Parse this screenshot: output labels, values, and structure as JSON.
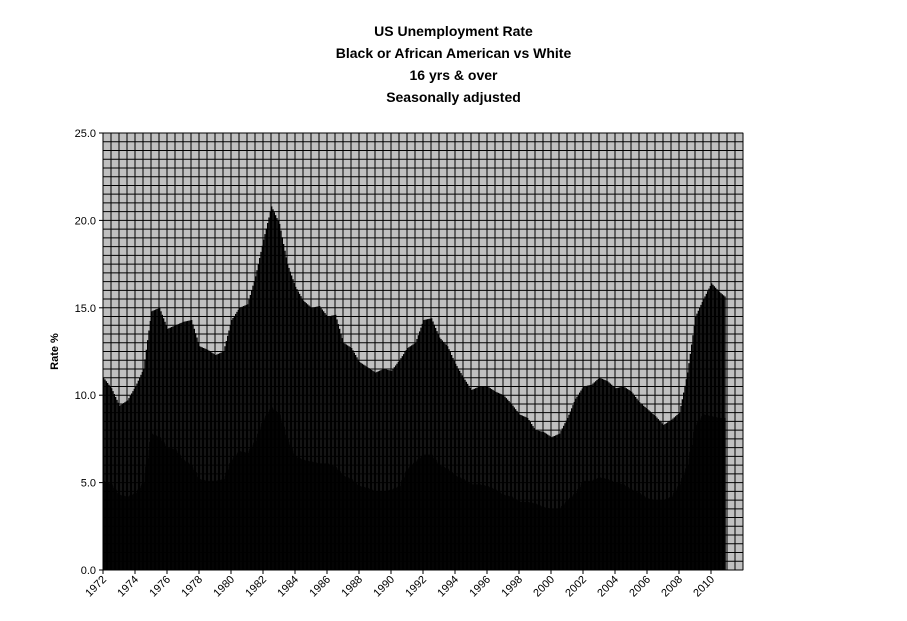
{
  "chart_data": {
    "type": "area",
    "title_lines": [
      "US Unemployment Rate",
      "Black or African American vs White",
      "16 yrs & over",
      "Seasonally adjusted"
    ],
    "xlabel": "",
    "ylabel": "Rate %",
    "ylim": [
      0,
      25
    ],
    "y_ticks": [
      "0.0",
      "5.0",
      "10.0",
      "15.0",
      "20.0",
      "25.0"
    ],
    "x_ticks": [
      "1972",
      "1974",
      "1976",
      "1978",
      "1980",
      "1982",
      "1984",
      "1986",
      "1988",
      "1990",
      "1992",
      "1994",
      "1996",
      "1998",
      "2000",
      "2002",
      "2004",
      "2006",
      "2008",
      "2010"
    ],
    "x_range": [
      1972,
      2012
    ],
    "grid": true,
    "plot_background": "#c0c0c0",
    "fill_color": "#000000",
    "series": [
      {
        "x": [
          1972.0,
          1972.5,
          1973.0,
          1973.5,
          1974.0,
          1974.5,
          1975.0,
          1975.5,
          1976.0,
          1976.5,
          1977.0,
          1977.5,
          1978.0,
          1978.5,
          1979.0,
          1979.5,
          1980.0,
          1980.5,
          1981.0,
          1981.5,
          1982.0,
          1982.5,
          1983.0,
          1983.5,
          1984.0,
          1984.5,
          1985.0,
          1985.5,
          1986.0,
          1986.5,
          1987.0,
          1987.5,
          1988.0,
          1988.5,
          1989.0,
          1989.5,
          1990.0,
          1990.5,
          1991.0,
          1991.5,
          1992.0,
          1992.5,
          1993.0,
          1993.5,
          1994.0,
          1994.5,
          1995.0,
          1995.5,
          1996.0,
          1996.5,
          1997.0,
          1997.5,
          1998.0,
          1998.5,
          1999.0,
          1999.5,
          2000.0,
          2000.5,
          2001.0,
          2001.5,
          2002.0,
          2002.5,
          2003.0,
          2003.5,
          2004.0,
          2004.5,
          2005.0,
          2005.5,
          2006.0,
          2006.5,
          2007.0,
          2007.5,
          2008.0,
          2008.5,
          2009.0,
          2009.5,
          2010.0,
          2010.5,
          2010.9
        ],
        "values": [
          11.0,
          10.4,
          9.4,
          9.7,
          10.5,
          11.5,
          14.8,
          15.0,
          13.8,
          14.0,
          14.2,
          14.3,
          12.8,
          12.6,
          12.3,
          12.5,
          14.3,
          15.0,
          15.2,
          16.8,
          18.9,
          20.8,
          19.8,
          17.5,
          16.2,
          15.4,
          15.0,
          15.1,
          14.5,
          14.6,
          13.0,
          12.7,
          11.9,
          11.6,
          11.3,
          11.5,
          11.4,
          12.0,
          12.7,
          13.0,
          14.3,
          14.4,
          13.3,
          12.8,
          11.8,
          11.0,
          10.3,
          10.5,
          10.5,
          10.2,
          10.0,
          9.5,
          8.9,
          8.7,
          8.0,
          7.9,
          7.6,
          7.8,
          8.7,
          9.8,
          10.5,
          10.6,
          11.0,
          10.8,
          10.4,
          10.5,
          10.2,
          9.6,
          9.2,
          8.8,
          8.3,
          8.6,
          9.0,
          11.3,
          14.5,
          15.5,
          16.4,
          15.9,
          15.6
        ]
      },
      {
        "x": [
          1972.0,
          1972.5,
          1973.0,
          1973.5,
          1974.0,
          1974.5,
          1975.0,
          1975.5,
          1976.0,
          1976.5,
          1977.0,
          1977.5,
          1978.0,
          1978.5,
          1979.0,
          1979.5,
          1980.0,
          1980.5,
          1981.0,
          1981.5,
          1982.0,
          1982.5,
          1983.0,
          1983.5,
          1984.0,
          1984.5,
          1985.0,
          1985.5,
          1986.0,
          1986.5,
          1987.0,
          1987.5,
          1988.0,
          1988.5,
          1989.0,
          1989.5,
          1990.0,
          1990.5,
          1991.0,
          1991.5,
          1992.0,
          1992.5,
          1993.0,
          1993.5,
          1994.0,
          1994.5,
          1995.0,
          1995.5,
          1996.0,
          1996.5,
          1997.0,
          1997.5,
          1998.0,
          1998.5,
          1999.0,
          1999.5,
          2000.0,
          2000.5,
          2001.0,
          2001.5,
          2002.0,
          2002.5,
          2003.0,
          2003.5,
          2004.0,
          2004.5,
          2005.0,
          2005.5,
          2006.0,
          2006.5,
          2007.0,
          2007.5,
          2008.0,
          2008.5,
          2009.0,
          2009.5,
          2010.0,
          2010.5,
          2010.9
        ],
        "values": [
          5.1,
          4.9,
          4.3,
          4.2,
          4.4,
          5.0,
          7.8,
          7.6,
          7.0,
          6.9,
          6.3,
          6.0,
          5.2,
          5.1,
          5.1,
          5.2,
          6.3,
          6.8,
          6.7,
          7.4,
          8.6,
          9.3,
          8.9,
          7.5,
          6.5,
          6.3,
          6.2,
          6.1,
          6.1,
          5.9,
          5.4,
          5.2,
          4.8,
          4.7,
          4.5,
          4.5,
          4.6,
          4.8,
          5.8,
          6.2,
          6.6,
          6.6,
          6.0,
          5.8,
          5.4,
          5.2,
          4.9,
          4.9,
          4.8,
          4.6,
          4.3,
          4.2,
          3.9,
          3.9,
          3.8,
          3.6,
          3.5,
          3.5,
          4.0,
          4.4,
          5.1,
          5.1,
          5.3,
          5.2,
          5.0,
          4.9,
          4.6,
          4.4,
          4.1,
          4.0,
          4.0,
          4.2,
          4.9,
          6.0,
          8.3,
          8.9,
          8.8,
          8.7,
          8.7
        ]
      }
    ]
  }
}
